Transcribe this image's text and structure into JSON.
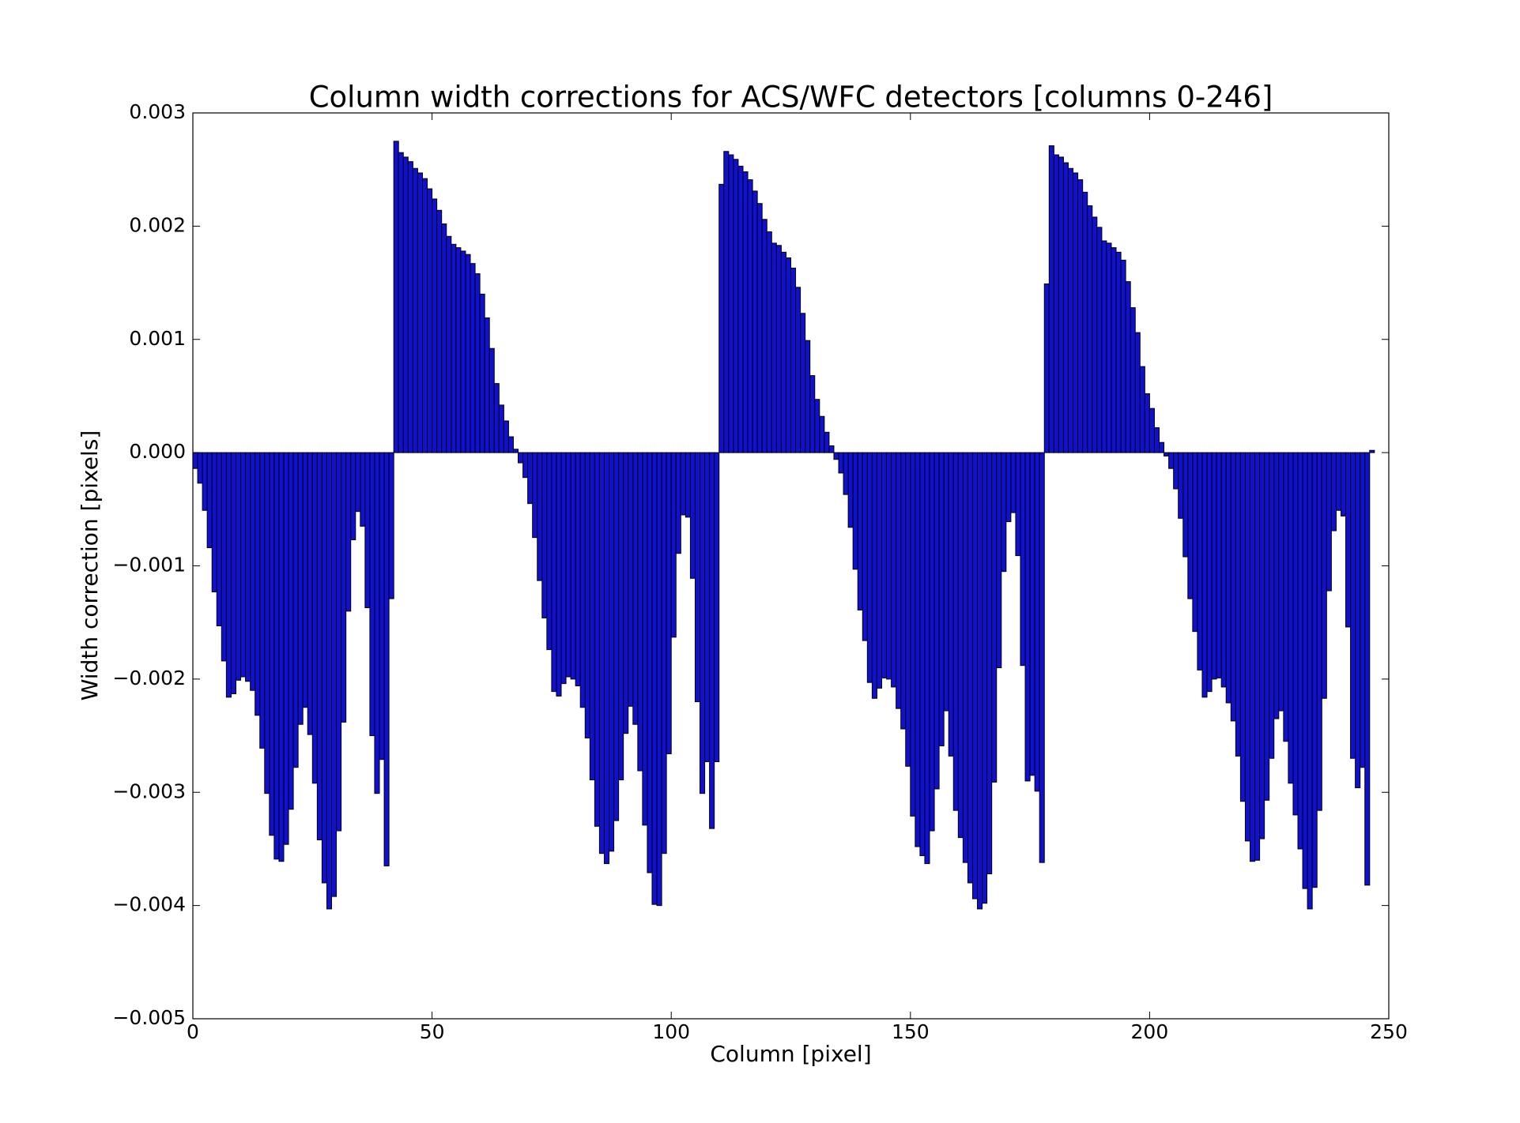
{
  "chart_data": {
    "type": "bar",
    "title": "Column width corrections for ACS/WFC detectors [columns 0-246]",
    "xlabel": "Column [pixel]",
    "ylabel": "Width correction [pixels]",
    "xlim": [
      0,
      250
    ],
    "xticks": [
      0,
      50,
      100,
      150,
      200,
      250
    ],
    "ylim": [
      -0.005,
      0.003
    ],
    "yticks": [
      {
        "value": -0.005,
        "label": "−0.005"
      },
      {
        "value": -0.004,
        "label": "−0.004"
      },
      {
        "value": -0.003,
        "label": "−0.003"
      },
      {
        "value": -0.002,
        "label": "−0.002"
      },
      {
        "value": -0.001,
        "label": "−0.001"
      },
      {
        "value": 0,
        "label": "0.000"
      },
      0.001,
      0.002,
      0.003
    ],
    "color": "#1010d0",
    "edgecolor": "#000000",
    "x": [
      0,
      1,
      2,
      3,
      4,
      5,
      6,
      7,
      8,
      9,
      10,
      11,
      12,
      13,
      14,
      15,
      16,
      17,
      18,
      19,
      20,
      21,
      22,
      23,
      24,
      25,
      26,
      27,
      28,
      29,
      30,
      31,
      32,
      33,
      34,
      35,
      36,
      37,
      38,
      39,
      40,
      41,
      42,
      43,
      44,
      45,
      46,
      47,
      48,
      49,
      50,
      51,
      52,
      53,
      54,
      55,
      56,
      57,
      58,
      59,
      60,
      61,
      62,
      63,
      64,
      65,
      66,
      67,
      68,
      69,
      70,
      71,
      72,
      73,
      74,
      75,
      76,
      77,
      78,
      79,
      80,
      81,
      82,
      83,
      84,
      85,
      86,
      87,
      88,
      89,
      90,
      91,
      92,
      93,
      94,
      95,
      96,
      97,
      98,
      99,
      100,
      101,
      102,
      103,
      104,
      105,
      106,
      107,
      108,
      109,
      110,
      111,
      112,
      113,
      114,
      115,
      116,
      117,
      118,
      119,
      120,
      121,
      122,
      123,
      124,
      125,
      126,
      127,
      128,
      129,
      130,
      131,
      132,
      133,
      134,
      135,
      136,
      137,
      138,
      139,
      140,
      141,
      142,
      143,
      144,
      145,
      146,
      147,
      148,
      149,
      150,
      151,
      152,
      153,
      154,
      155,
      156,
      157,
      158,
      159,
      160,
      161,
      162,
      163,
      164,
      165,
      166,
      167,
      168,
      169,
      170,
      171,
      172,
      173,
      174,
      175,
      176,
      177,
      178,
      179,
      180,
      181,
      182,
      183,
      184,
      185,
      186,
      187,
      188,
      189,
      190,
      191,
      192,
      193,
      194,
      195,
      196,
      197,
      198,
      199,
      200,
      201,
      202,
      203,
      204,
      205,
      206,
      207,
      208,
      209,
      210,
      211,
      212,
      213,
      214,
      215,
      216,
      217,
      218,
      219,
      220,
      221,
      222,
      223,
      224,
      225,
      226,
      227,
      228,
      229,
      230,
      231,
      232,
      233,
      234,
      235,
      236,
      237,
      238,
      239,
      240,
      241,
      242,
      243,
      244,
      245,
      246
    ],
    "values": [
      -0.00014,
      -0.00027,
      -0.00051,
      -0.00084,
      -0.00123,
      -0.00153,
      -0.00184,
      -0.00216,
      -0.00213,
      -0.00201,
      -0.00198,
      -0.00202,
      -0.0021,
      -0.00232,
      -0.00261,
      -0.00301,
      -0.00338,
      -0.00359,
      -0.00361,
      -0.00346,
      -0.00315,
      -0.00278,
      -0.0024,
      -0.00225,
      -0.00249,
      -0.00292,
      -0.00342,
      -0.0038,
      -0.00403,
      -0.00392,
      -0.00334,
      -0.00238,
      -0.0014,
      -0.00077,
      -0.00052,
      -0.00065,
      -0.00137,
      -0.0025,
      -0.00301,
      -0.00271,
      -0.00365,
      -0.00129,
      0.00275,
      0.00265,
      0.00261,
      0.00257,
      0.00251,
      0.00247,
      0.00242,
      0.00233,
      0.00224,
      0.00214,
      0.00202,
      0.00191,
      0.00184,
      0.00181,
      0.00178,
      0.00175,
      0.00167,
      0.00158,
      0.0014,
      0.00119,
      0.00092,
      0.00061,
      0.00042,
      0.00028,
      0.00014,
      3e-05,
      -9e-05,
      -0.00022,
      -0.00045,
      -0.00075,
      -0.00113,
      -0.00146,
      -0.00174,
      -0.00211,
      -0.00215,
      -0.00204,
      -0.00198,
      -0.002,
      -0.00206,
      -0.00225,
      -0.00252,
      -0.00289,
      -0.0033,
      -0.00354,
      -0.00363,
      -0.00352,
      -0.00325,
      -0.00289,
      -0.00248,
      -0.00224,
      -0.0024,
      -0.00281,
      -0.00329,
      -0.00371,
      -0.00399,
      -0.004,
      -0.00354,
      -0.00266,
      -0.00163,
      -0.00089,
      -0.00055,
      -0.00057,
      -0.00111,
      -0.0022,
      -0.00301,
      -0.00273,
      -0.00332,
      -0.00273,
      0.00237,
      0.00266,
      0.00263,
      0.00259,
      0.00253,
      0.00248,
      0.00241,
      0.00231,
      0.0022,
      0.00206,
      0.00195,
      0.00185,
      0.00183,
      0.00177,
      0.00172,
      0.00163,
      0.00146,
      0.00123,
      0.00099,
      0.00068,
      0.00047,
      0.00032,
      0.00018,
      6e-05,
      -6e-05,
      -0.00018,
      -0.00037,
      -0.00066,
      -0.00103,
      -0.00139,
      -0.00166,
      -0.00203,
      -0.00217,
      -0.00208,
      -0.00199,
      -0.002,
      -0.00207,
      -0.00226,
      -0.00244,
      -0.00277,
      -0.00321,
      -0.00348,
      -0.00356,
      -0.00363,
      -0.00334,
      -0.00297,
      -0.00259,
      -0.00228,
      -0.00268,
      -0.00316,
      -0.0034,
      -0.00362,
      -0.0038,
      -0.00394,
      -0.00403,
      -0.00398,
      -0.00372,
      -0.00291,
      -0.0019,
      -0.00105,
      -0.00061,
      -0.00053,
      -0.00091,
      -0.00188,
      -0.0029,
      -0.00285,
      -0.00299,
      -0.00362,
      0.00149,
      0.00271,
      0.00263,
      0.00261,
      0.00256,
      0.00251,
      0.00247,
      0.00241,
      0.0023,
      0.00218,
      0.00208,
      0.00199,
      0.00187,
      0.00185,
      0.00181,
      0.00177,
      0.0017,
      0.00151,
      0.00128,
      0.00106,
      0.00076,
      0.00052,
      0.00039,
      0.00022,
      9e-05,
      -3e-05,
      -0.00014,
      -0.00032,
      -0.00058,
      -0.00092,
      -0.00129,
      -0.00158,
      -0.00192,
      -0.00216,
      -0.00211,
      -0.002,
      -0.00199,
      -0.00207,
      -0.00221,
      -0.00237,
      -0.00268,
      -0.00308,
      -0.00343,
      -0.00361,
      -0.0036,
      -0.00341,
      -0.00307,
      -0.0027,
      -0.00235,
      -0.00228,
      -0.00255,
      -0.00292,
      -0.0032,
      -0.0035,
      -0.00385,
      -0.00403,
      -0.00384,
      -0.00316,
      -0.00217,
      -0.00122,
      -0.00069,
      -0.00051,
      -0.00056,
      -0.00154,
      -0.0027,
      -0.00296,
      -0.00278,
      -0.00382,
      2e-05
    ]
  }
}
